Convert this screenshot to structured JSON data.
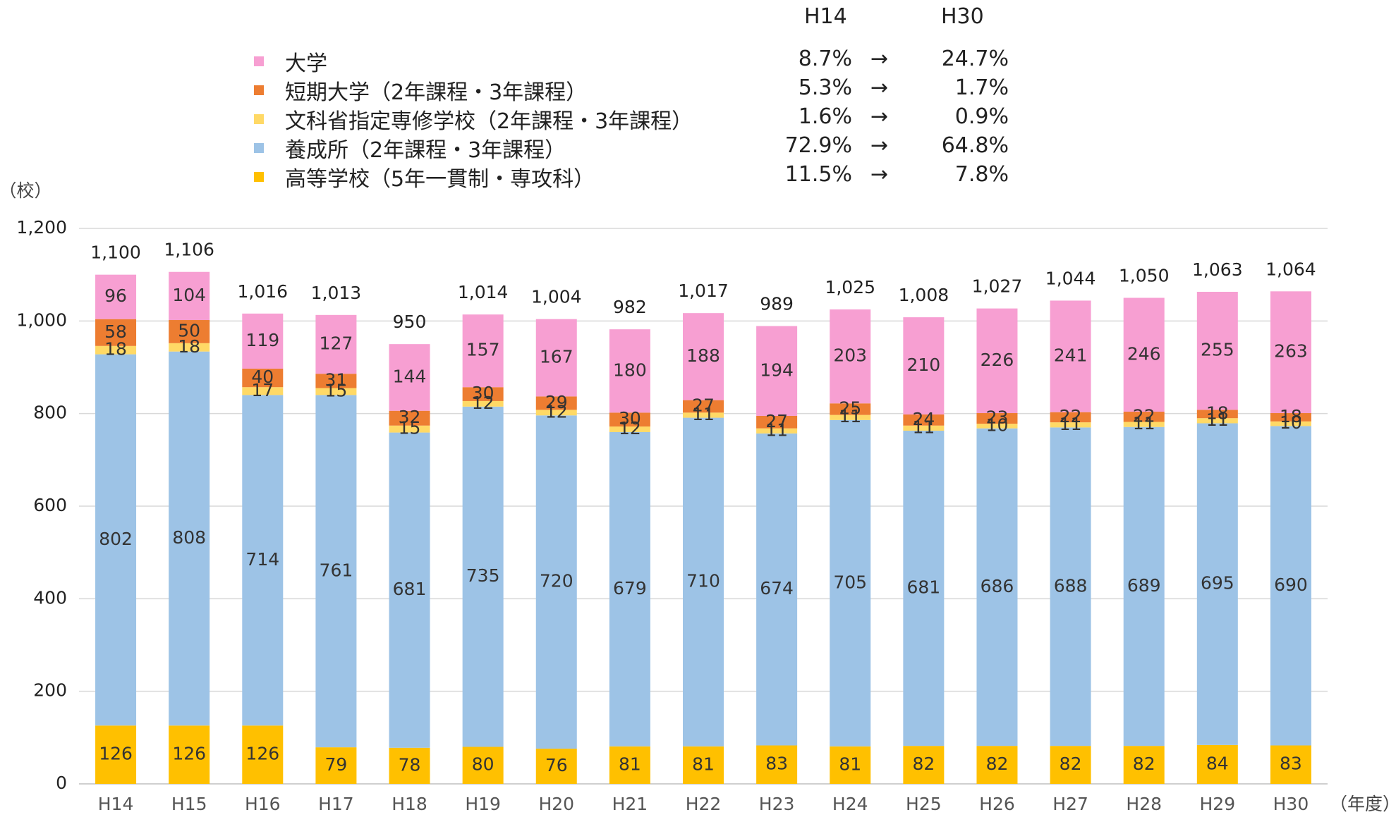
{
  "legend": {
    "header_from": "H14",
    "header_to": "H30",
    "arrow": "→",
    "items": [
      {
        "label": "大学",
        "color": "#f79fd2",
        "from": "8.7%",
        "to": "24.7%"
      },
      {
        "label": "短期大学（2年課程・3年課程）",
        "color": "#ed7d31",
        "from": "5.3%",
        "to": "1.7%"
      },
      {
        "label": "文科省指定専修学校（2年課程・3年課程）",
        "color": "#ffd966",
        "from": "1.6%",
        "to": "0.9%"
      },
      {
        "label": "養成所（2年課程・3年課程）",
        "color": "#9dc3e6",
        "from": "72.9%",
        "to": "64.8%"
      },
      {
        "label": "高等学校（5年一貫制・専攻科）",
        "color": "#ffc000",
        "from": "11.5%",
        "to": "7.8%"
      }
    ]
  },
  "chart_data": {
    "type": "bar",
    "stacked": true,
    "y_unit_label": "（校）",
    "x_unit_label": "（年度）",
    "ylim": [
      0,
      1200
    ],
    "yticks": [
      0,
      200,
      400,
      600,
      800,
      1000,
      1200
    ],
    "ytick_labels": [
      "0",
      "200",
      "400",
      "600",
      "800",
      "1,000",
      "1,200"
    ],
    "grid": true,
    "categories": [
      "H14",
      "H15",
      "H16",
      "H17",
      "H18",
      "H19",
      "H20",
      "H21",
      "H22",
      "H23",
      "H24",
      "H25",
      "H26",
      "H27",
      "H28",
      "H29",
      "H30"
    ],
    "series": [
      {
        "name": "高等学校（5年一貫制・専攻科）",
        "color": "#ffc000",
        "values": [
          126,
          126,
          126,
          79,
          78,
          80,
          76,
          81,
          81,
          83,
          81,
          82,
          82,
          82,
          82,
          84,
          83
        ]
      },
      {
        "name": "養成所（2年課程・3年課程）",
        "color": "#9dc3e6",
        "values": [
          802,
          808,
          714,
          761,
          681,
          735,
          720,
          679,
          710,
          674,
          705,
          681,
          686,
          688,
          689,
          695,
          690
        ]
      },
      {
        "name": "文科省指定専修学校（2年課程・3年課程）",
        "color": "#ffd966",
        "values": [
          18,
          18,
          17,
          15,
          15,
          12,
          12,
          12,
          11,
          11,
          11,
          11,
          10,
          11,
          11,
          11,
          10
        ]
      },
      {
        "name": "短期大学（2年課程・3年課程）",
        "color": "#ed7d31",
        "values": [
          58,
          50,
          40,
          31,
          32,
          30,
          29,
          30,
          27,
          27,
          25,
          24,
          23,
          22,
          22,
          18,
          18
        ]
      },
      {
        "name": "大学",
        "color": "#f79fd2",
        "values": [
          96,
          104,
          119,
          127,
          144,
          157,
          167,
          180,
          188,
          194,
          203,
          210,
          226,
          241,
          246,
          255,
          263
        ]
      }
    ],
    "totals": [
      1100,
      1106,
      1016,
      1013,
      950,
      1014,
      1004,
      982,
      1017,
      989,
      1025,
      1008,
      1027,
      1044,
      1050,
      1063,
      1064
    ],
    "total_labels": [
      "1,100",
      "1,106",
      "1,016",
      "1,013",
      "950",
      "1,014",
      "1,004",
      "982",
      "1,017",
      "989",
      "1,025",
      "1,008",
      "1,027",
      "1,044",
      "1,050",
      "1,063",
      "1,064"
    ]
  }
}
